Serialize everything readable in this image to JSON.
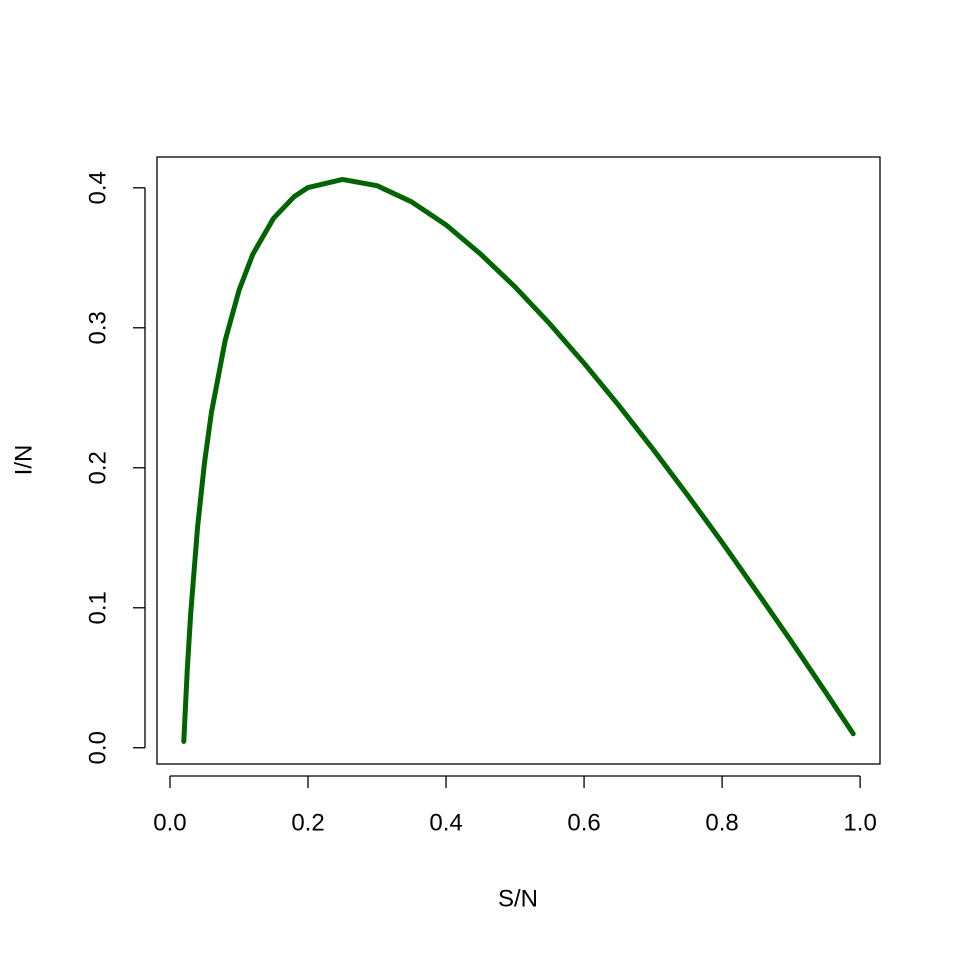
{
  "chart_data": {
    "type": "line",
    "x_label": "S/N",
    "y_label": "I/N",
    "x": [
      0.02,
      0.025,
      0.03,
      0.04,
      0.05,
      0.06,
      0.08,
      0.1,
      0.12,
      0.15,
      0.18,
      0.2,
      0.25,
      0.3,
      0.35,
      0.4,
      0.45,
      0.5,
      0.55,
      0.6,
      0.65,
      0.7,
      0.75,
      0.8,
      0.85,
      0.9,
      0.95,
      0.99
    ],
    "series": [
      {
        "color": "#006400",
        "values": [
          0.0045,
          0.0552,
          0.0957,
          0.1577,
          0.2035,
          0.2392,
          0.291,
          0.3267,
          0.3525,
          0.3782,
          0.3937,
          0.4002,
          0.406,
          0.4015,
          0.39,
          0.3735,
          0.3527,
          0.3292,
          0.303,
          0.2747,
          0.2447,
          0.2132,
          0.1805,
          0.1467,
          0.1117,
          0.0762,
          0.0397,
          0.01
        ]
      }
    ],
    "xlim": [
      -0.0188,
      1.0288
    ],
    "ylim": [
      -0.0116,
      0.422
    ],
    "xticks": [
      {
        "value": 0,
        "label": "0.0"
      },
      0.2,
      0.4,
      0.6,
      0.8,
      {
        "value": 1,
        "label": "1.0"
      }
    ],
    "yticks": [
      {
        "value": 0,
        "label": "0.0"
      },
      0.1,
      0.2,
      0.3,
      0.4
    ],
    "grid": false
  }
}
